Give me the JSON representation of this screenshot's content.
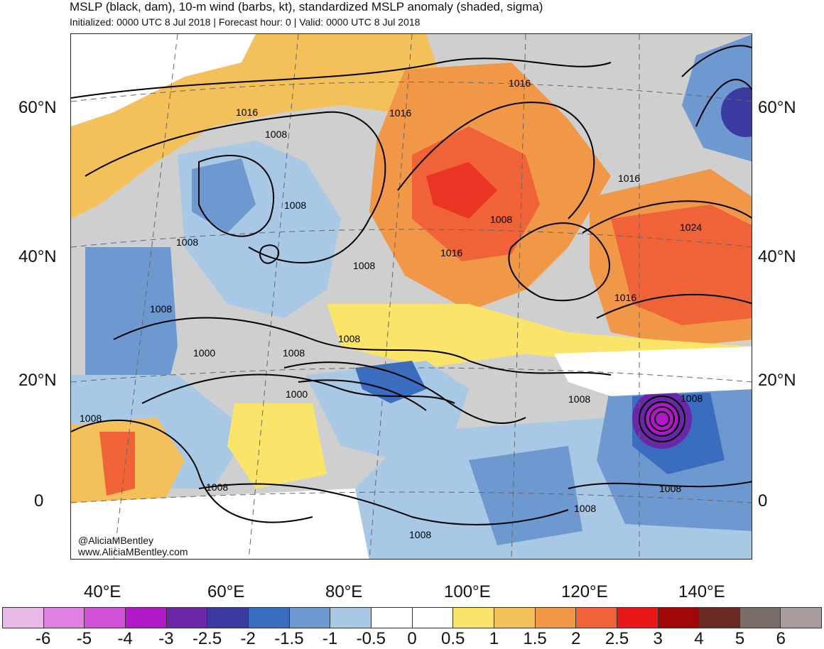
{
  "header": {
    "title": "MSLP (black, dam), 10-m wind (barbs, kt), standardized MSLP anomaly (shaded, sigma)",
    "subtitle": "Initialized: 0000 UTC 8 Jul 2018 | Forecast hour: 0 | Valid: 0000 UTC 8 Jul 2018"
  },
  "map": {
    "lat_labels": [
      "60°N",
      "40°N",
      "20°N",
      "0"
    ],
    "lon_labels": [
      "40°E",
      "60°E",
      "80°E",
      "100°E",
      "120°E",
      "140°E"
    ],
    "isobar_labels": [
      "1016",
      "1016",
      "1016",
      "1008",
      "1008",
      "1008",
      "1016",
      "1024",
      "1008",
      "1008",
      "1016",
      "1008",
      "1000",
      "1008",
      "1008",
      "1000",
      "1008",
      "1008",
      "1008",
      "1008",
      "1008",
      "1008",
      "1016"
    ],
    "credit_handle": "@AliciaMBentley",
    "credit_site": "www.AliciaMBentley.com"
  },
  "colorbar": {
    "labels": [
      "-6",
      "-5",
      "-4",
      "-3",
      "-2.5",
      "-2",
      "-1.5",
      "-1",
      "-0.5",
      "0",
      "0.5",
      "1",
      "1.5",
      "2",
      "2.5",
      "3",
      "4",
      "5",
      "6"
    ],
    "colors": [
      "#e8b8e6",
      "#e080e0",
      "#d050d8",
      "#b018c8",
      "#6a28a8",
      "#3a3aa0",
      "#3a6cc0",
      "#6e98d0",
      "#a8c8e6",
      "#ffffff",
      "#ffffff",
      "#fbe46a",
      "#f4c05a",
      "#f09848",
      "#f06238",
      "#e81818",
      "#a00808",
      "#6a2a24",
      "#7a6c68",
      "#a89c9c"
    ]
  }
}
